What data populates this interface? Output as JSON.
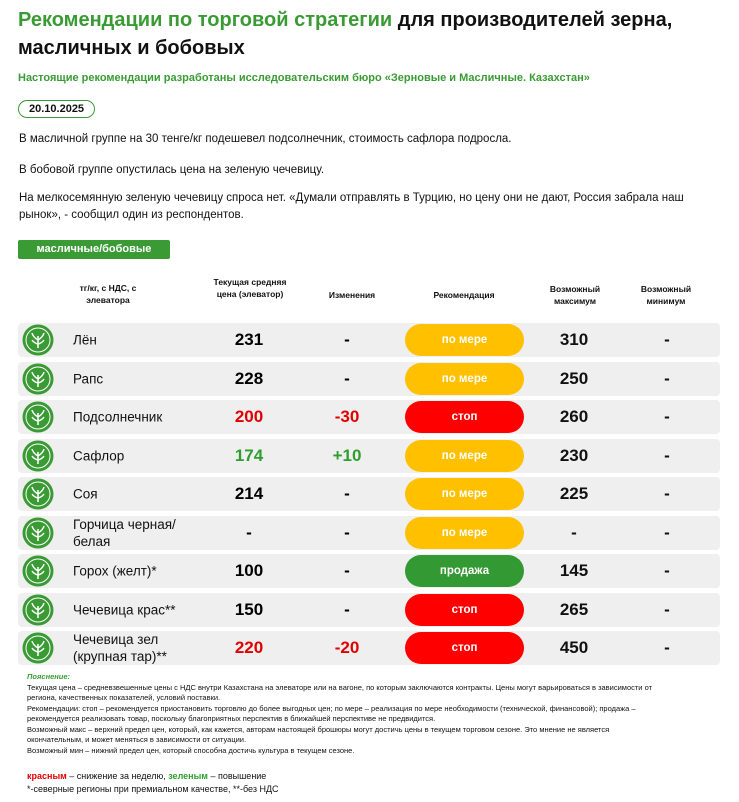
{
  "header": {
    "title_accent": "Рекомендации по торговой стратегии",
    "title_rest": "для производителей зерна, масличных и бобовых",
    "subtitle": "Настоящие рекомендации разработаны исследовательским бюро «Зерновые и Масличные. Казахстан»",
    "date": "20.10.2025"
  },
  "paragraphs": [
    "В масличной группе на 30 тенге/кг подешевел подсолнечник, стоимость сафлора подросла.",
    "В бобовой группе опустилась цена на зеленую чечевицу.",
    "На мелкосемянную зеленую чечевицу спроса нет. «Думали отправлять в Турцию, но цену они не дают, Россия забрала наш рынок», - сообщил один из респондентов."
  ],
  "table": {
    "tag": "масличные/бобовые",
    "columns": [
      "тг/кг, с НДС, с элеватора",
      "Текущая средняя цена (элеватор)",
      "Изменения",
      "Рекомендация",
      "Возможный максимум",
      "Возможный минимум"
    ],
    "rows": [
      {
        "name": "Лён",
        "price": "231",
        "change": "-",
        "trend_color": "#000000",
        "rec": "по мере",
        "rec_color": "#ffc000",
        "max": "310",
        "min": "-"
      },
      {
        "name": "Рапс",
        "price": "228",
        "change": "-",
        "trend_color": "#000000",
        "rec": "по мере",
        "rec_color": "#ffc000",
        "max": "250",
        "min": "-"
      },
      {
        "name": "Подсолнечник",
        "price": "200",
        "change": "-30",
        "trend_color": "#e00000",
        "rec": "стоп",
        "rec_color": "#ff0000",
        "max": "260",
        "min": "-"
      },
      {
        "name": "Сафлор",
        "price": "174",
        "change": "+10",
        "trend_color": "#2e9e2e",
        "rec": "по мере",
        "rec_color": "#ffc000",
        "max": "230",
        "min": "-"
      },
      {
        "name": "Соя",
        "price": "214",
        "change": "-",
        "trend_color": "#000000",
        "rec": "по мере",
        "rec_color": "#ffc000",
        "max": "225",
        "min": "-"
      },
      {
        "name": "Горчица черная/белая",
        "price": "-",
        "change": "-",
        "trend_color": "#000000",
        "rec": "по мере",
        "rec_color": "#ffc000",
        "max": "-",
        "min": "-"
      },
      {
        "name": "Горох (желт)*",
        "price": "100",
        "change": "-",
        "trend_color": "#000000",
        "rec": "продажа",
        "rec_color": "#339933",
        "max": "145",
        "min": "-"
      },
      {
        "name": "Чечевица крас**",
        "price": "150",
        "change": "-",
        "trend_color": "#000000",
        "rec": "стоп",
        "rec_color": "#ff0000",
        "max": "265",
        "min": "-"
      },
      {
        "name": "Чечевица зел (крупная тар)**",
        "price": "220",
        "change": "-20",
        "trend_color": "#e00000",
        "rec": "стоп",
        "rec_color": "#ff0000",
        "max": "450",
        "min": "-"
      }
    ]
  },
  "notes": {
    "heading": "Пояснение:",
    "lines": [
      "Текущая цена – средневзвешенные цены с НДС внутри Казахстана на элеваторе или на вагоне, по которым заключаются контракты. Цены могут варьироваться в зависимости от региона, качественных показателей, условий поставки.",
      "Рекомендации: стоп – рекомендуется приостановить торговлю до более выгодных цен; по мере – реализация по мере необходимости (технической, финансовой); продажа – рекомендуется реализовать товар, поскольку благоприятных перспектив в ближайшей перспективе не предвидится.",
      "Возможный макс – верхний предел цен, который, как кажется, авторам настоящей брошюры могут достичь цены в текущем торговом сезоне. Это мнение не является окончательным, и может меняться в зависимости от ситуации.",
      "Возможный мин – нижний предел цен, который способна достичь культура в текущем сезоне."
    ],
    "legend_red": "красным",
    "legend_red_text": " – снижение за неделю, ",
    "legend_green": "зеленым",
    "legend_green_text": " – повышение",
    "footnote": "*-северные регионы при премиальном качестве, **-без НДС"
  }
}
